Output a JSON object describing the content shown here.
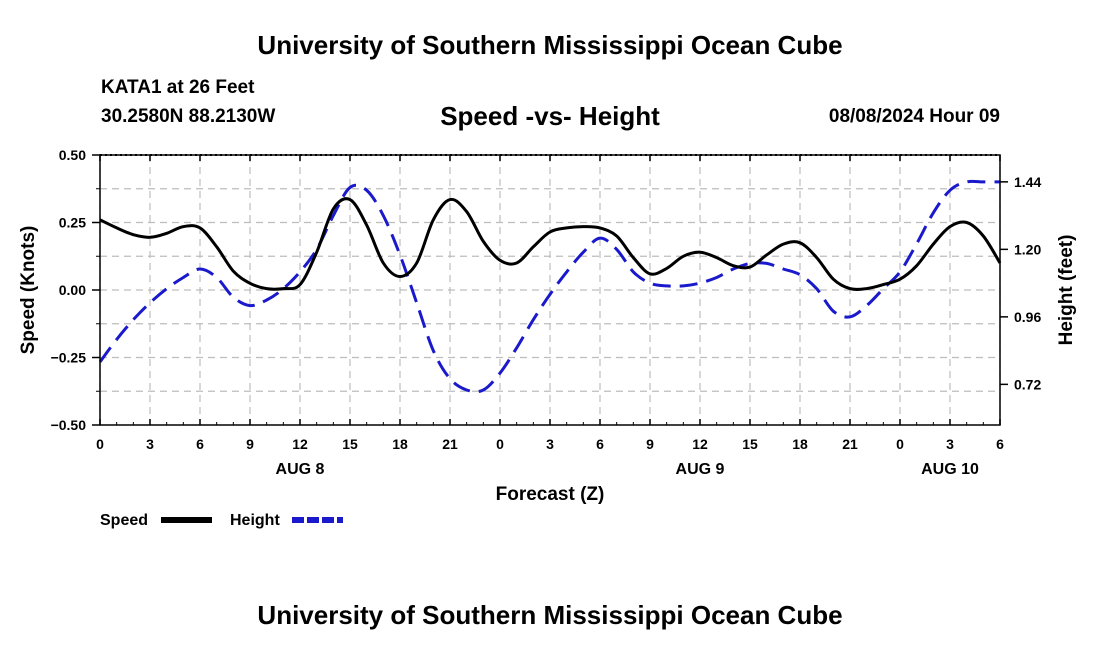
{
  "header": {
    "title": "University of Southern Mississippi Ocean Cube",
    "station": "KATA1 at 26 Feet",
    "coords": "30.2580N  88.2130W",
    "chart_title": "Speed -vs- Height",
    "date": "08/08/2024 Hour 09"
  },
  "footer": {
    "title": "University of Southern Mississippi Ocean Cube"
  },
  "colors": {
    "speed": "#000000",
    "height": "#1a1acc",
    "grid": "#bdbdbd"
  },
  "chart_data": {
    "type": "line",
    "title": "Speed -vs- Height",
    "xlabel": "Forecast (Z)",
    "ylabel": "Speed (Knots)",
    "y2label": "Height (feet)",
    "x_range": [
      0,
      54
    ],
    "ylim": [
      -0.5,
      0.5
    ],
    "y2lim": [
      0.5755,
      1.5355
    ],
    "x_ticks": [
      {
        "x": 0,
        "label": "0"
      },
      {
        "x": 3,
        "label": "3"
      },
      {
        "x": 6,
        "label": "6"
      },
      {
        "x": 9,
        "label": "9"
      },
      {
        "x": 12,
        "label": "12"
      },
      {
        "x": 15,
        "label": "15"
      },
      {
        "x": 18,
        "label": "18"
      },
      {
        "x": 21,
        "label": "21"
      },
      {
        "x": 24,
        "label": "0"
      },
      {
        "x": 27,
        "label": "3"
      },
      {
        "x": 30,
        "label": "6"
      },
      {
        "x": 33,
        "label": "9"
      },
      {
        "x": 36,
        "label": "12"
      },
      {
        "x": 39,
        "label": "15"
      },
      {
        "x": 42,
        "label": "18"
      },
      {
        "x": 45,
        "label": "21"
      },
      {
        "x": 48,
        "label": "0"
      },
      {
        "x": 51,
        "label": "3"
      },
      {
        "x": 54,
        "label": "6"
      }
    ],
    "date_labels": [
      {
        "x": 12,
        "label": "AUG 8"
      },
      {
        "x": 36,
        "label": "AUG 9"
      },
      {
        "x": 51,
        "label": "AUG 10"
      }
    ],
    "y_ticks": [
      {
        "value": 0.5,
        "label": "0.50"
      },
      {
        "value": 0.25,
        "label": "0.25"
      },
      {
        "value": 0.0,
        "label": "0.00"
      },
      {
        "value": -0.25,
        "label": "−0.25"
      },
      {
        "value": -0.5,
        "label": "−0.50"
      }
    ],
    "y2_ticks": [
      {
        "value": 1.44,
        "label": "1.44"
      },
      {
        "value": 1.2,
        "label": "1.20"
      },
      {
        "value": 0.96,
        "label": "0.96"
      },
      {
        "value": 0.72,
        "label": "0.72"
      }
    ],
    "series": [
      {
        "name": "Speed",
        "axis": "left",
        "style": "solid",
        "x": [
          0,
          1,
          2,
          3,
          4,
          5,
          6,
          7,
          8,
          9,
          10,
          11,
          12,
          13,
          14,
          15,
          16,
          17,
          18,
          19,
          20,
          21,
          22,
          23,
          24,
          25,
          26,
          27,
          28,
          29,
          30,
          31,
          32,
          33,
          34,
          35,
          36,
          37,
          38,
          39,
          40,
          41,
          42,
          43,
          44,
          45,
          46,
          47,
          48,
          49,
          50,
          51,
          52,
          53,
          54
        ],
        "values": [
          0.26,
          0.23,
          0.205,
          0.195,
          0.21,
          0.235,
          0.23,
          0.16,
          0.07,
          0.025,
          0.005,
          0.005,
          0.02,
          0.14,
          0.3,
          0.335,
          0.24,
          0.1,
          0.05,
          0.1,
          0.26,
          0.335,
          0.29,
          0.18,
          0.11,
          0.1,
          0.16,
          0.215,
          0.23,
          0.235,
          0.23,
          0.2,
          0.12,
          0.06,
          0.08,
          0.125,
          0.14,
          0.12,
          0.09,
          0.085,
          0.13,
          0.17,
          0.175,
          0.12,
          0.04,
          0.005,
          0.005,
          0.02,
          0.04,
          0.09,
          0.17,
          0.235,
          0.25,
          0.2,
          0.1
        ]
      },
      {
        "name": "Height",
        "axis": "right",
        "style": "dashed",
        "x": [
          0,
          1,
          2,
          3,
          4,
          5,
          6,
          7,
          8,
          9,
          10,
          11,
          12,
          13,
          14,
          15,
          16,
          17,
          18,
          19,
          20,
          21,
          22,
          23,
          24,
          25,
          26,
          27,
          28,
          29,
          30,
          31,
          32,
          33,
          34,
          35,
          36,
          37,
          38,
          39,
          40,
          41,
          42,
          43,
          44,
          45,
          46,
          47,
          48,
          49,
          50,
          51,
          52,
          53,
          54
        ],
        "values": [
          0.8,
          0.88,
          0.95,
          1.01,
          1.06,
          1.1,
          1.13,
          1.1,
          1.03,
          1.0,
          1.02,
          1.06,
          1.12,
          1.2,
          1.32,
          1.42,
          1.41,
          1.32,
          1.18,
          1.01,
          0.84,
          0.74,
          0.7,
          0.7,
          0.76,
          0.85,
          0.95,
          1.04,
          1.12,
          1.19,
          1.24,
          1.2,
          1.12,
          1.08,
          1.07,
          1.07,
          1.08,
          1.1,
          1.13,
          1.15,
          1.15,
          1.13,
          1.11,
          1.06,
          0.98,
          0.96,
          1.0,
          1.06,
          1.12,
          1.22,
          1.33,
          1.41,
          1.44,
          1.44,
          1.44
        ]
      }
    ]
  },
  "legend": {
    "speed_label": "Speed",
    "height_label": "Height"
  }
}
